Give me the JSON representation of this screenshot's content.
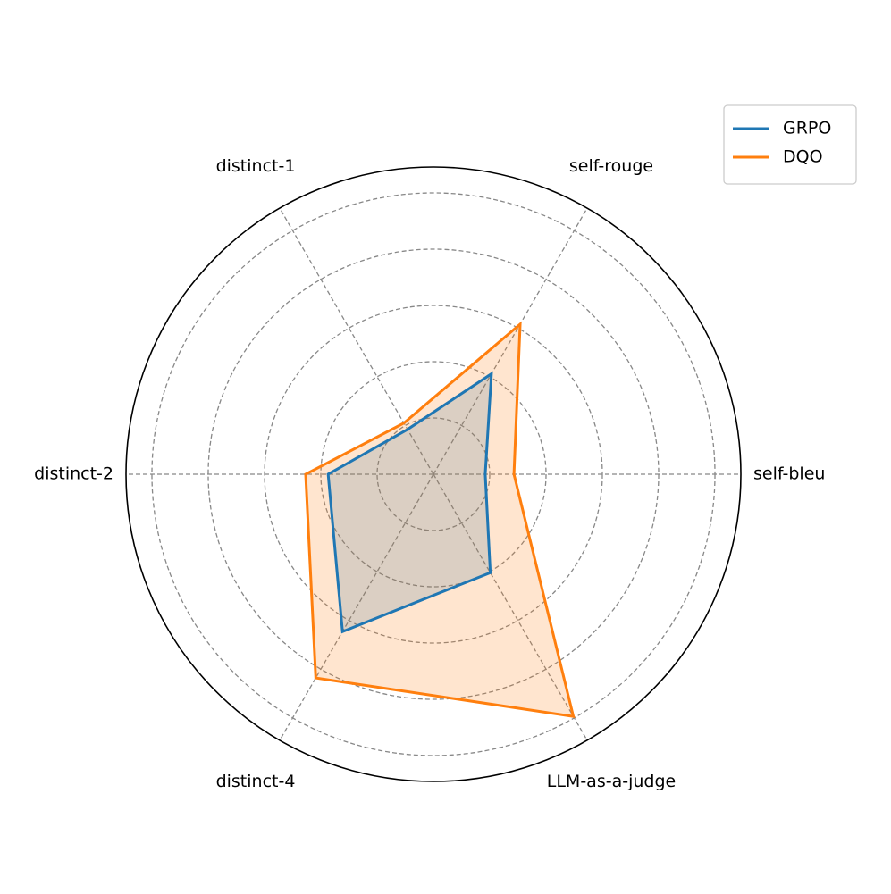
{
  "chart_data": {
    "type": "radar",
    "categories": [
      "self-bleu",
      "self-rouge",
      "distinct-1",
      "distinct-2",
      "distinct-4",
      "LLM-as-a-judge"
    ],
    "series": [
      {
        "name": "GRPO",
        "color": "#1f77b4",
        "values": [
          0.92,
          2.06,
          0.92,
          1.87,
          3.23,
          2.02
        ]
      },
      {
        "name": "DQO",
        "color": "#ff7f0e",
        "values": [
          1.43,
          3.08,
          1.05,
          2.27,
          4.18,
          4.97
        ]
      }
    ],
    "ylim": [
      0,
      5.46
    ],
    "yticks": [
      1,
      2,
      3,
      4,
      5
    ],
    "grid": true,
    "legend": "upper right"
  }
}
